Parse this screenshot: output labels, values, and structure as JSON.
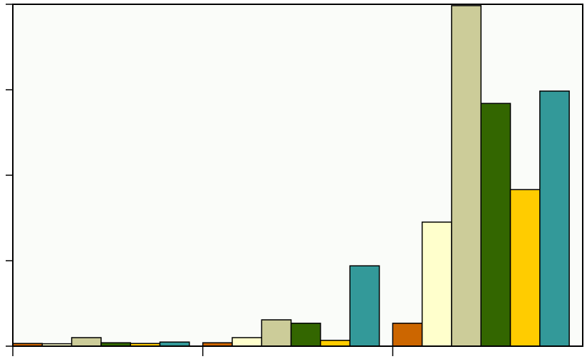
{
  "chart_data": {
    "type": "bar",
    "title": "",
    "xlabel": "",
    "ylabel": "",
    "categories": [
      "",
      "",
      ""
    ],
    "ylim": [
      0,
      100
    ],
    "yticks": [
      0,
      25,
      50,
      75,
      100
    ],
    "grid": false,
    "legend": "none",
    "background_color": "#fafcf9",
    "series": [
      {
        "color": "#cc6600",
        "values": [
          0.8,
          1.0,
          6.7
        ]
      },
      {
        "color": "#ffffcc",
        "values": [
          0.7,
          2.5,
          36.3
        ]
      },
      {
        "color": "#cccc99",
        "values": [
          2.5,
          7.7,
          99.6
        ]
      },
      {
        "color": "#336600",
        "values": [
          1.0,
          6.7,
          71.0
        ]
      },
      {
        "color": "#ffcc00",
        "values": [
          0.8,
          1.7,
          45.8
        ]
      },
      {
        "color": "#339999",
        "values": [
          1.2,
          23.5,
          74.6
        ]
      }
    ]
  }
}
